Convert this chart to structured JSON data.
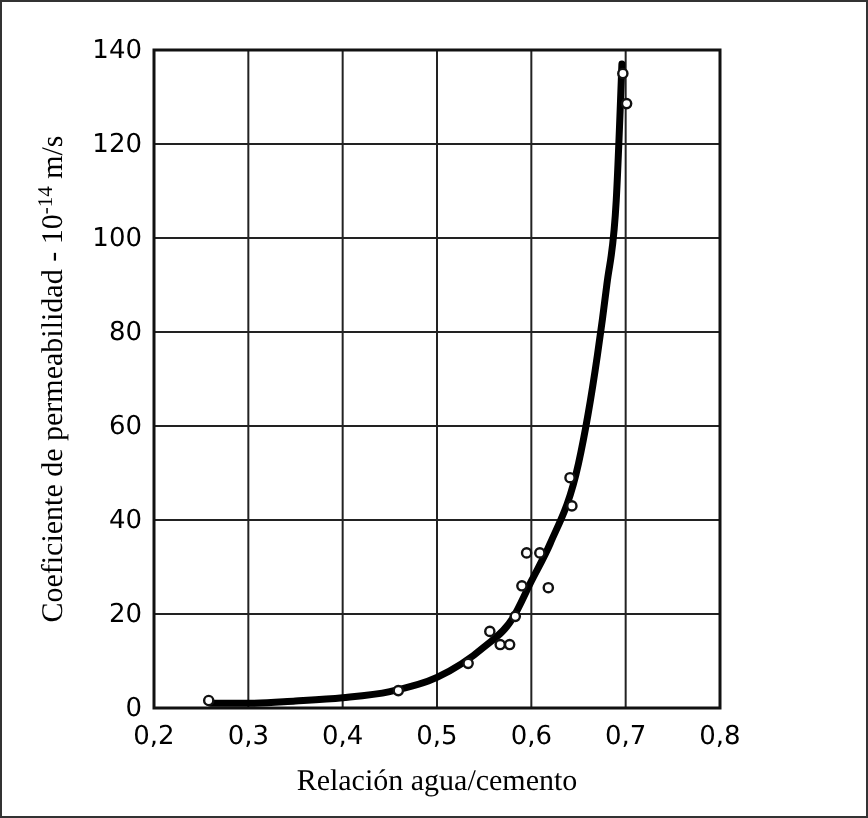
{
  "chart_data": {
    "type": "scatter",
    "xlabel": "Relación agua/cemento",
    "ylabel": "Coeficiente de permeabilidad - 10$^{-14}$ m/s",
    "xlim": [
      0.2,
      0.8
    ],
    "ylim": [
      0,
      140
    ],
    "xticks": [
      {
        "value": 0.2,
        "label": "0,2"
      },
      {
        "value": 0.3,
        "label": "0,3"
      },
      {
        "value": 0.4,
        "label": "0,4"
      },
      {
        "value": 0.5,
        "label": "0,5"
      },
      {
        "value": 0.6,
        "label": "0,6"
      },
      {
        "value": 0.7,
        "label": "0,7"
      },
      {
        "value": 0.8,
        "label": "0,8"
      }
    ],
    "yticks": [
      0,
      20,
      40,
      60,
      80,
      100,
      120,
      140
    ],
    "grid": true,
    "series": [
      {
        "marker": "circle",
        "color": "#111111",
        "x": [
          0.258,
          0.459,
          0.533,
          0.556,
          0.567,
          0.577,
          0.583,
          0.59,
          0.595,
          0.609,
          0.618,
          0.641,
          0.643,
          0.697,
          0.701
        ],
        "values": [
          1.6,
          3.7,
          9.5,
          16.3,
          13.5,
          13.5,
          19.5,
          26,
          33,
          33,
          25.6,
          49,
          43,
          135,
          128.6
        ]
      },
      {
        "type": "line",
        "marker": "none",
        "color": "#000000",
        "x": [
          0.26,
          0.3,
          0.35,
          0.4,
          0.45,
          0.5,
          0.55,
          0.58,
          0.6,
          0.62,
          0.65,
          0.67,
          0.68,
          0.69,
          0.696
        ],
        "values": [
          1,
          1,
          1.5,
          2.2,
          3.5,
          6.5,
          13,
          19,
          27,
          35,
          52,
          75,
          90,
          108,
          137
        ]
      }
    ]
  }
}
